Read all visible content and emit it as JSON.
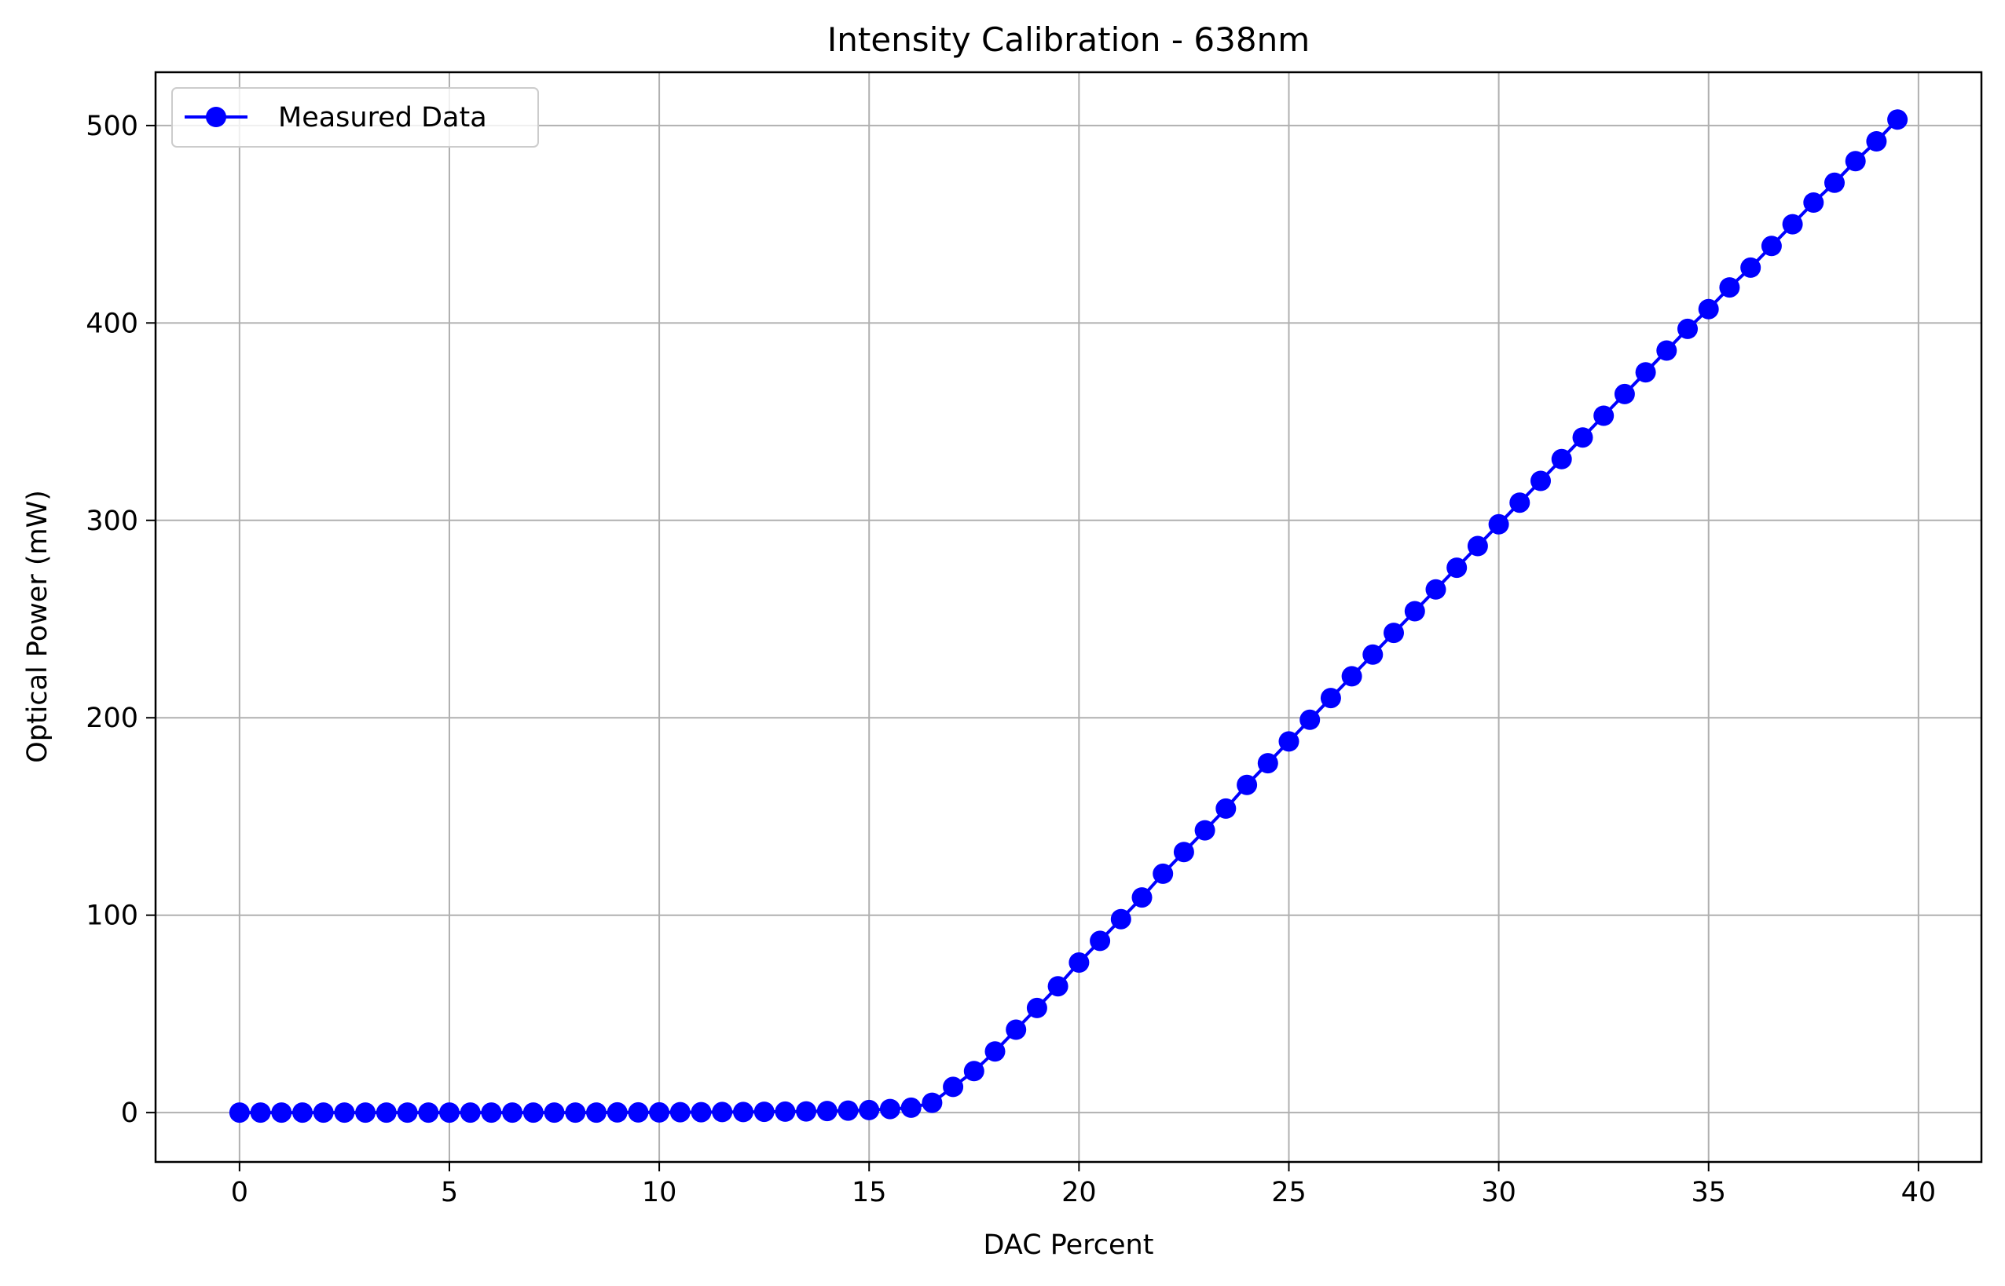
{
  "chart_data": {
    "type": "line",
    "title": "Intensity Calibration - 638nm",
    "xlabel": "DAC Percent",
    "ylabel": "Optical Power (mW)",
    "xlim": [
      -2,
      41.5
    ],
    "ylim": [
      -25,
      527
    ],
    "xticks": [
      0,
      5,
      10,
      15,
      20,
      25,
      30,
      35,
      40
    ],
    "yticks": [
      0,
      100,
      200,
      300,
      400,
      500
    ],
    "grid": true,
    "legend_position": "top-left",
    "series": [
      {
        "name": "Measured Data",
        "color": "#0000ff",
        "marker": "circle",
        "x": [
          0,
          0.5,
          1,
          1.5,
          2,
          2.5,
          3,
          3.5,
          4,
          4.5,
          5,
          5.5,
          6,
          6.5,
          7,
          7.5,
          8,
          8.5,
          9,
          9.5,
          10,
          10.5,
          11,
          11.5,
          12,
          12.5,
          13,
          13.5,
          14,
          14.5,
          15,
          15.5,
          16,
          16.5,
          17,
          17.5,
          18,
          18.5,
          19,
          19.5,
          20,
          20.5,
          21,
          21.5,
          22,
          22.5,
          23,
          23.5,
          24,
          24.5,
          25,
          25.5,
          26,
          26.5,
          27,
          27.5,
          28,
          28.5,
          29,
          29.5,
          30,
          30.5,
          31,
          31.5,
          32,
          32.5,
          33,
          33.5,
          34,
          34.5,
          35,
          35.5,
          36,
          36.5,
          37,
          37.5,
          38,
          38.5,
          39,
          39.5
        ],
        "y": [
          0,
          0,
          0,
          0,
          0,
          0,
          0,
          0,
          0,
          0,
          0,
          0,
          0,
          0,
          0,
          0,
          0,
          0,
          0.1,
          0.1,
          0.1,
          0.2,
          0.2,
          0.3,
          0.3,
          0.4,
          0.5,
          0.6,
          0.8,
          1,
          1.3,
          1.8,
          2.5,
          5,
          13,
          21,
          31,
          42,
          53,
          64,
          76,
          87,
          98,
          109,
          121,
          132,
          143,
          154,
          166,
          177,
          188,
          199,
          210,
          221,
          232,
          243,
          254,
          265,
          276,
          287,
          298,
          309,
          320,
          331,
          342,
          353,
          364,
          375,
          386,
          397,
          407,
          418,
          428,
          439,
          450,
          461,
          471,
          482,
          492,
          503
        ]
      }
    ]
  }
}
